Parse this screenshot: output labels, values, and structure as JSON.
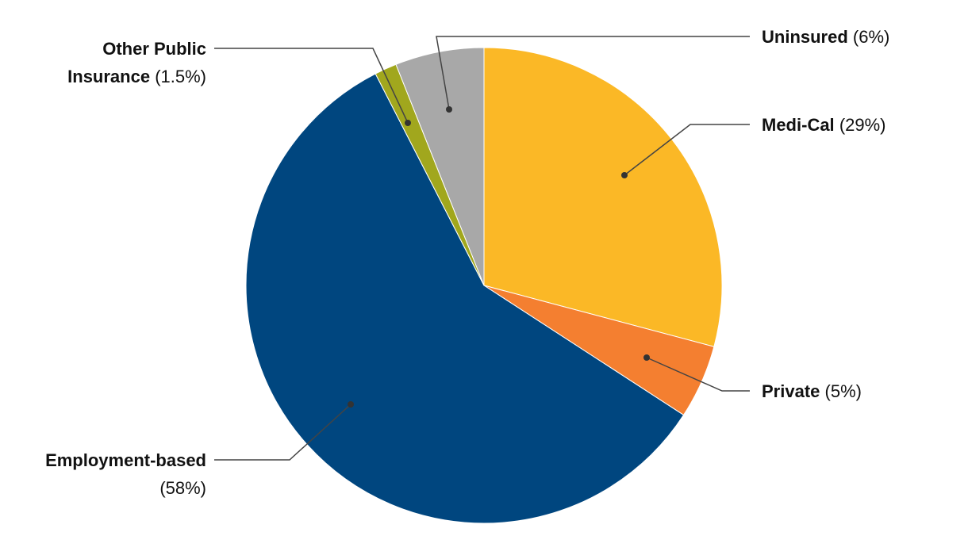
{
  "chart_data": {
    "type": "pie",
    "categories": [
      "Medi-Cal",
      "Private",
      "Employment-based",
      "Other Public Insurance",
      "Uninsured"
    ],
    "values": [
      29,
      5,
      58,
      1.5,
      6
    ],
    "value_labels": [
      "(29%)",
      "(5%)",
      "(58%)",
      "(1.5%)",
      "(6%)"
    ],
    "colors": [
      "#fbb826",
      "#f47f30",
      "#00467f",
      "#a1a71d",
      "#a8a8a8"
    ]
  }
}
